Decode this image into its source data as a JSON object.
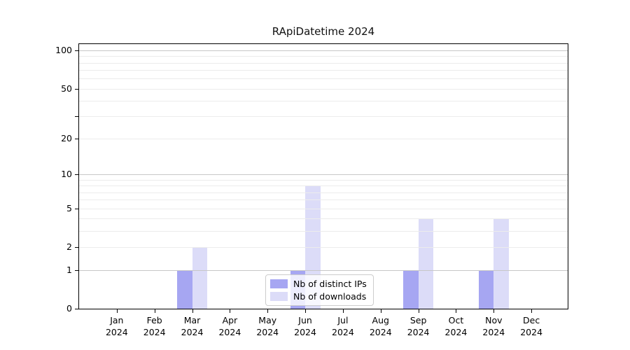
{
  "chart_data": {
    "type": "bar",
    "title": "RApiDatetime 2024",
    "xlabel": "",
    "ylabel": "",
    "categories": [
      "Jan 2024",
      "Feb 2024",
      "Mar 2024",
      "Apr 2024",
      "May 2024",
      "Jun 2024",
      "Jul 2024",
      "Aug 2024",
      "Sep 2024",
      "Oct 2024",
      "Nov 2024",
      "Dec 2024"
    ],
    "series": [
      {
        "name": "Nb of distinct IPs",
        "color": "#a6a6f2",
        "values": [
          0,
          0,
          1,
          0,
          0,
          1,
          0,
          0,
          1,
          0,
          1,
          0
        ]
      },
      {
        "name": "Nb of downloads",
        "color": "#dcdcf8",
        "values": [
          0,
          0,
          2,
          0,
          0,
          8,
          0,
          0,
          4,
          0,
          4,
          0
        ]
      }
    ],
    "yscale": "log1p",
    "ylim": [
      0,
      112
    ],
    "yticks": [
      {
        "value": 0,
        "label": "0"
      },
      {
        "value": 1,
        "label": "1"
      },
      {
        "value": 2,
        "label": "2"
      },
      {
        "value": 5,
        "label": "5"
      },
      {
        "value": 10,
        "label": "10"
      },
      {
        "value": 20,
        "label": "20"
      },
      {
        "value": 30,
        "label": ""
      },
      {
        "value": 50,
        "label": "50"
      },
      {
        "value": 100,
        "label": "100"
      }
    ],
    "grid": "horizontal",
    "grid_major_values": [
      1,
      10,
      100
    ],
    "grid_minor_values": [
      2,
      3,
      4,
      5,
      6,
      7,
      8,
      9,
      20,
      30,
      40,
      50,
      60,
      70,
      80,
      90
    ],
    "legend_position": "inside-bottom-center"
  },
  "colors": {
    "grid_major": "#c7c7c7",
    "grid_minor": "#ececec",
    "axis": "#000000",
    "legend_border": "#cccccc"
  }
}
